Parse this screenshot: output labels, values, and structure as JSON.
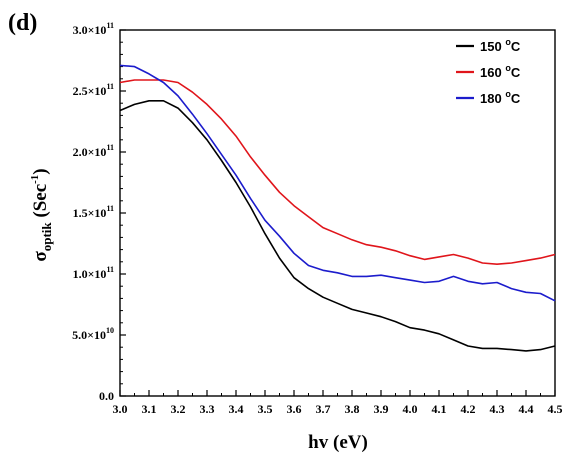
{
  "chart_data": {
    "type": "line",
    "panel_label": "(d)",
    "xlabel": "hv (eV)",
    "ylabel_main": "σ",
    "ylabel_sub": "optik",
    "ylabel_unit": " (Sec",
    "ylabel_exp": "-1",
    "ylabel_close": ")",
    "xlim": [
      3.0,
      4.5
    ],
    "ylim": [
      0,
      300000000000.0
    ],
    "x_ticks": [
      3.0,
      3.1,
      3.2,
      3.3,
      3.4,
      3.5,
      3.6,
      3.7,
      3.8,
      3.9,
      4.0,
      4.1,
      4.2,
      4.3,
      4.4,
      4.5
    ],
    "x_tick_labels": [
      "3.0",
      "3.1",
      "3.2",
      "3.3",
      "3.4",
      "3.5",
      "3.6",
      "3.7",
      "3.8",
      "3.9",
      "4.0",
      "4.1",
      "4.2",
      "4.3",
      "4.4",
      "4.5"
    ],
    "y_ticks": [
      {
        "value": 0,
        "label": "0.0",
        "exp": ""
      },
      {
        "value": 50000000000.0,
        "label": "5.0×10",
        "exp": "10"
      },
      {
        "value": 100000000000.0,
        "label": "1.0×10",
        "exp": "11"
      },
      {
        "value": 150000000000.0,
        "label": "1.5×10",
        "exp": "11"
      },
      {
        "value": 200000000000.0,
        "label": "2.0×10",
        "exp": "11"
      },
      {
        "value": 250000000000.0,
        "label": "2.5×10",
        "exp": "11"
      },
      {
        "value": 300000000000.0,
        "label": "3.0×10",
        "exp": "11"
      }
    ],
    "legend_position": "top-right",
    "grid": false,
    "series": [
      {
        "name": "150 ",
        "name_sup": "o",
        "name_unit": "C",
        "color": "#000000",
        "x": [
          3.0,
          3.05,
          3.1,
          3.15,
          3.2,
          3.25,
          3.3,
          3.35,
          3.4,
          3.45,
          3.5,
          3.55,
          3.6,
          3.65,
          3.7,
          3.75,
          3.8,
          3.85,
          3.9,
          3.95,
          4.0,
          4.05,
          4.1,
          4.15,
          4.2,
          4.25,
          4.3,
          4.35,
          4.4,
          4.45,
          4.5
        ],
        "y": [
          234000000000.0,
          239000000000.0,
          242000000000.0,
          242000000000.0,
          236000000000.0,
          224000000000.0,
          210000000000.0,
          193000000000.0,
          175000000000.0,
          155000000000.0,
          133000000000.0,
          113000000000.0,
          97000000000.0,
          88000000000.0,
          81000000000.0,
          76000000000.0,
          71000000000.0,
          68000000000.0,
          65000000000.0,
          61000000000.0,
          56000000000.0,
          54000000000.0,
          51000000000.0,
          46000000000.0,
          41000000000.0,
          39000000000.0,
          39000000000.0,
          38000000000.0,
          37000000000.0,
          38000000000.0,
          41000000000.0
        ]
      },
      {
        "name": "160 ",
        "name_sup": "o",
        "name_unit": "C",
        "color": "#e0151b",
        "x": [
          3.0,
          3.05,
          3.1,
          3.15,
          3.2,
          3.25,
          3.3,
          3.35,
          3.4,
          3.45,
          3.5,
          3.55,
          3.6,
          3.65,
          3.7,
          3.75,
          3.8,
          3.85,
          3.9,
          3.95,
          4.0,
          4.05,
          4.1,
          4.15,
          4.2,
          4.25,
          4.3,
          4.35,
          4.4,
          4.45,
          4.5
        ],
        "y": [
          257000000000.0,
          259000000000.0,
          259000000000.0,
          259000000000.0,
          257000000000.0,
          249000000000.0,
          239000000000.0,
          227000000000.0,
          213000000000.0,
          196000000000.0,
          181000000000.0,
          167000000000.0,
          156000000000.0,
          147000000000.0,
          138000000000.0,
          133000000000.0,
          128000000000.0,
          124000000000.0,
          122000000000.0,
          119000000000.0,
          115000000000.0,
          112000000000.0,
          114000000000.0,
          116000000000.0,
          113000000000.0,
          109000000000.0,
          108000000000.0,
          109000000000.0,
          111000000000.0,
          113000000000.0,
          116000000000.0
        ]
      },
      {
        "name": "180 ",
        "name_sup": "o",
        "name_unit": "C",
        "color": "#1c1ccc",
        "x": [
          3.0,
          3.05,
          3.1,
          3.15,
          3.2,
          3.25,
          3.3,
          3.35,
          3.4,
          3.45,
          3.5,
          3.55,
          3.6,
          3.65,
          3.7,
          3.75,
          3.8,
          3.85,
          3.9,
          3.95,
          4.0,
          4.05,
          4.1,
          4.15,
          4.2,
          4.25,
          4.3,
          4.35,
          4.4,
          4.45,
          4.5
        ],
        "y": [
          271000000000.0,
          270000000000.0,
          264000000000.0,
          257000000000.0,
          246000000000.0,
          231000000000.0,
          215000000000.0,
          198000000000.0,
          181000000000.0,
          162000000000.0,
          144000000000.0,
          131000000000.0,
          117000000000.0,
          107000000000.0,
          103000000000.0,
          101000000000.0,
          98000000000.0,
          98000000000.0,
          99000000000.0,
          97000000000.0,
          95000000000.0,
          93000000000.0,
          94000000000.0,
          98000000000.0,
          94000000000.0,
          92000000000.0,
          93000000000.0,
          88000000000.0,
          85000000000.0,
          84000000000.0,
          78000000000.0
        ]
      }
    ]
  }
}
